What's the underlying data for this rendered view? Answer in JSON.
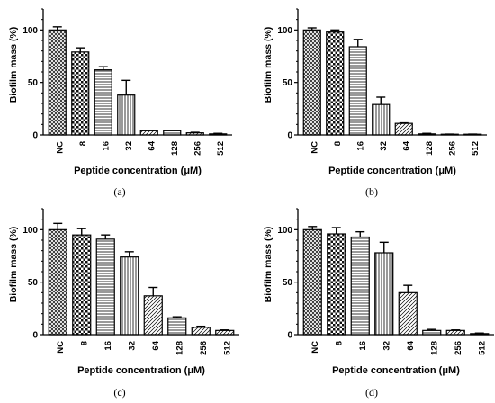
{
  "figure": {
    "panels": [
      {
        "panel_label": "(a)",
        "chart_data": {
          "type": "bar",
          "xlabel": "Peptide concentration (μM)",
          "ylabel": "Biofilm mass (%)",
          "ylim": [
            0,
            120
          ],
          "yticks": [
            0,
            50,
            100
          ],
          "categories": [
            "NC",
            "8",
            "16",
            "32",
            "64",
            "128",
            "256",
            "512"
          ],
          "values": [
            100,
            79,
            62,
            38,
            4,
            4,
            2,
            1
          ],
          "errors": [
            3,
            4,
            3,
            14,
            0.5,
            0.5,
            0.5,
            0.5
          ],
          "error_bars": "upper",
          "grid": false,
          "legend": "none"
        }
      },
      {
        "panel_label": "(b)",
        "chart_data": {
          "type": "bar",
          "xlabel": "Peptide concentration (μM)",
          "ylabel": "Biofilm mass (%)",
          "ylim": [
            0,
            120
          ],
          "yticks": [
            0,
            50,
            100
          ],
          "categories": [
            "NC",
            "8",
            "16",
            "32",
            "64",
            "128",
            "256",
            "512"
          ],
          "values": [
            100,
            98,
            84,
            29,
            11,
            1,
            0.5,
            0.5
          ],
          "errors": [
            2,
            2,
            7,
            7,
            0.5,
            0.5,
            0.3,
            0.3
          ],
          "error_bars": "upper",
          "grid": false,
          "legend": "none"
        }
      },
      {
        "panel_label": "(c)",
        "chart_data": {
          "type": "bar",
          "xlabel": "Peptide concentration (μM)",
          "ylabel": "Biofilm mass (%)",
          "ylim": [
            0,
            120
          ],
          "yticks": [
            0,
            50,
            100
          ],
          "categories": [
            "NC",
            "8",
            "16",
            "32",
            "64",
            "128",
            "256",
            "512"
          ],
          "values": [
            100,
            95,
            91,
            74,
            37,
            16,
            7,
            4
          ],
          "errors": [
            6,
            6,
            4,
            5,
            8,
            1,
            1,
            0.5
          ],
          "error_bars": "upper",
          "grid": false,
          "legend": "none"
        }
      },
      {
        "panel_label": "(d)",
        "chart_data": {
          "type": "bar",
          "xlabel": "Peptide concentration (μM)",
          "ylabel": "Biofilm mass (%)",
          "ylim": [
            0,
            120
          ],
          "yticks": [
            0,
            50,
            100
          ],
          "categories": [
            "NC",
            "8",
            "16",
            "32",
            "64",
            "128",
            "256",
            "512"
          ],
          "values": [
            100,
            96,
            93,
            78,
            40,
            4,
            4,
            1
          ],
          "errors": [
            3,
            6,
            5,
            10,
            7,
            1,
            0.5,
            0.5
          ],
          "error_bars": "upper",
          "grid": false,
          "legend": "none"
        }
      }
    ]
  }
}
